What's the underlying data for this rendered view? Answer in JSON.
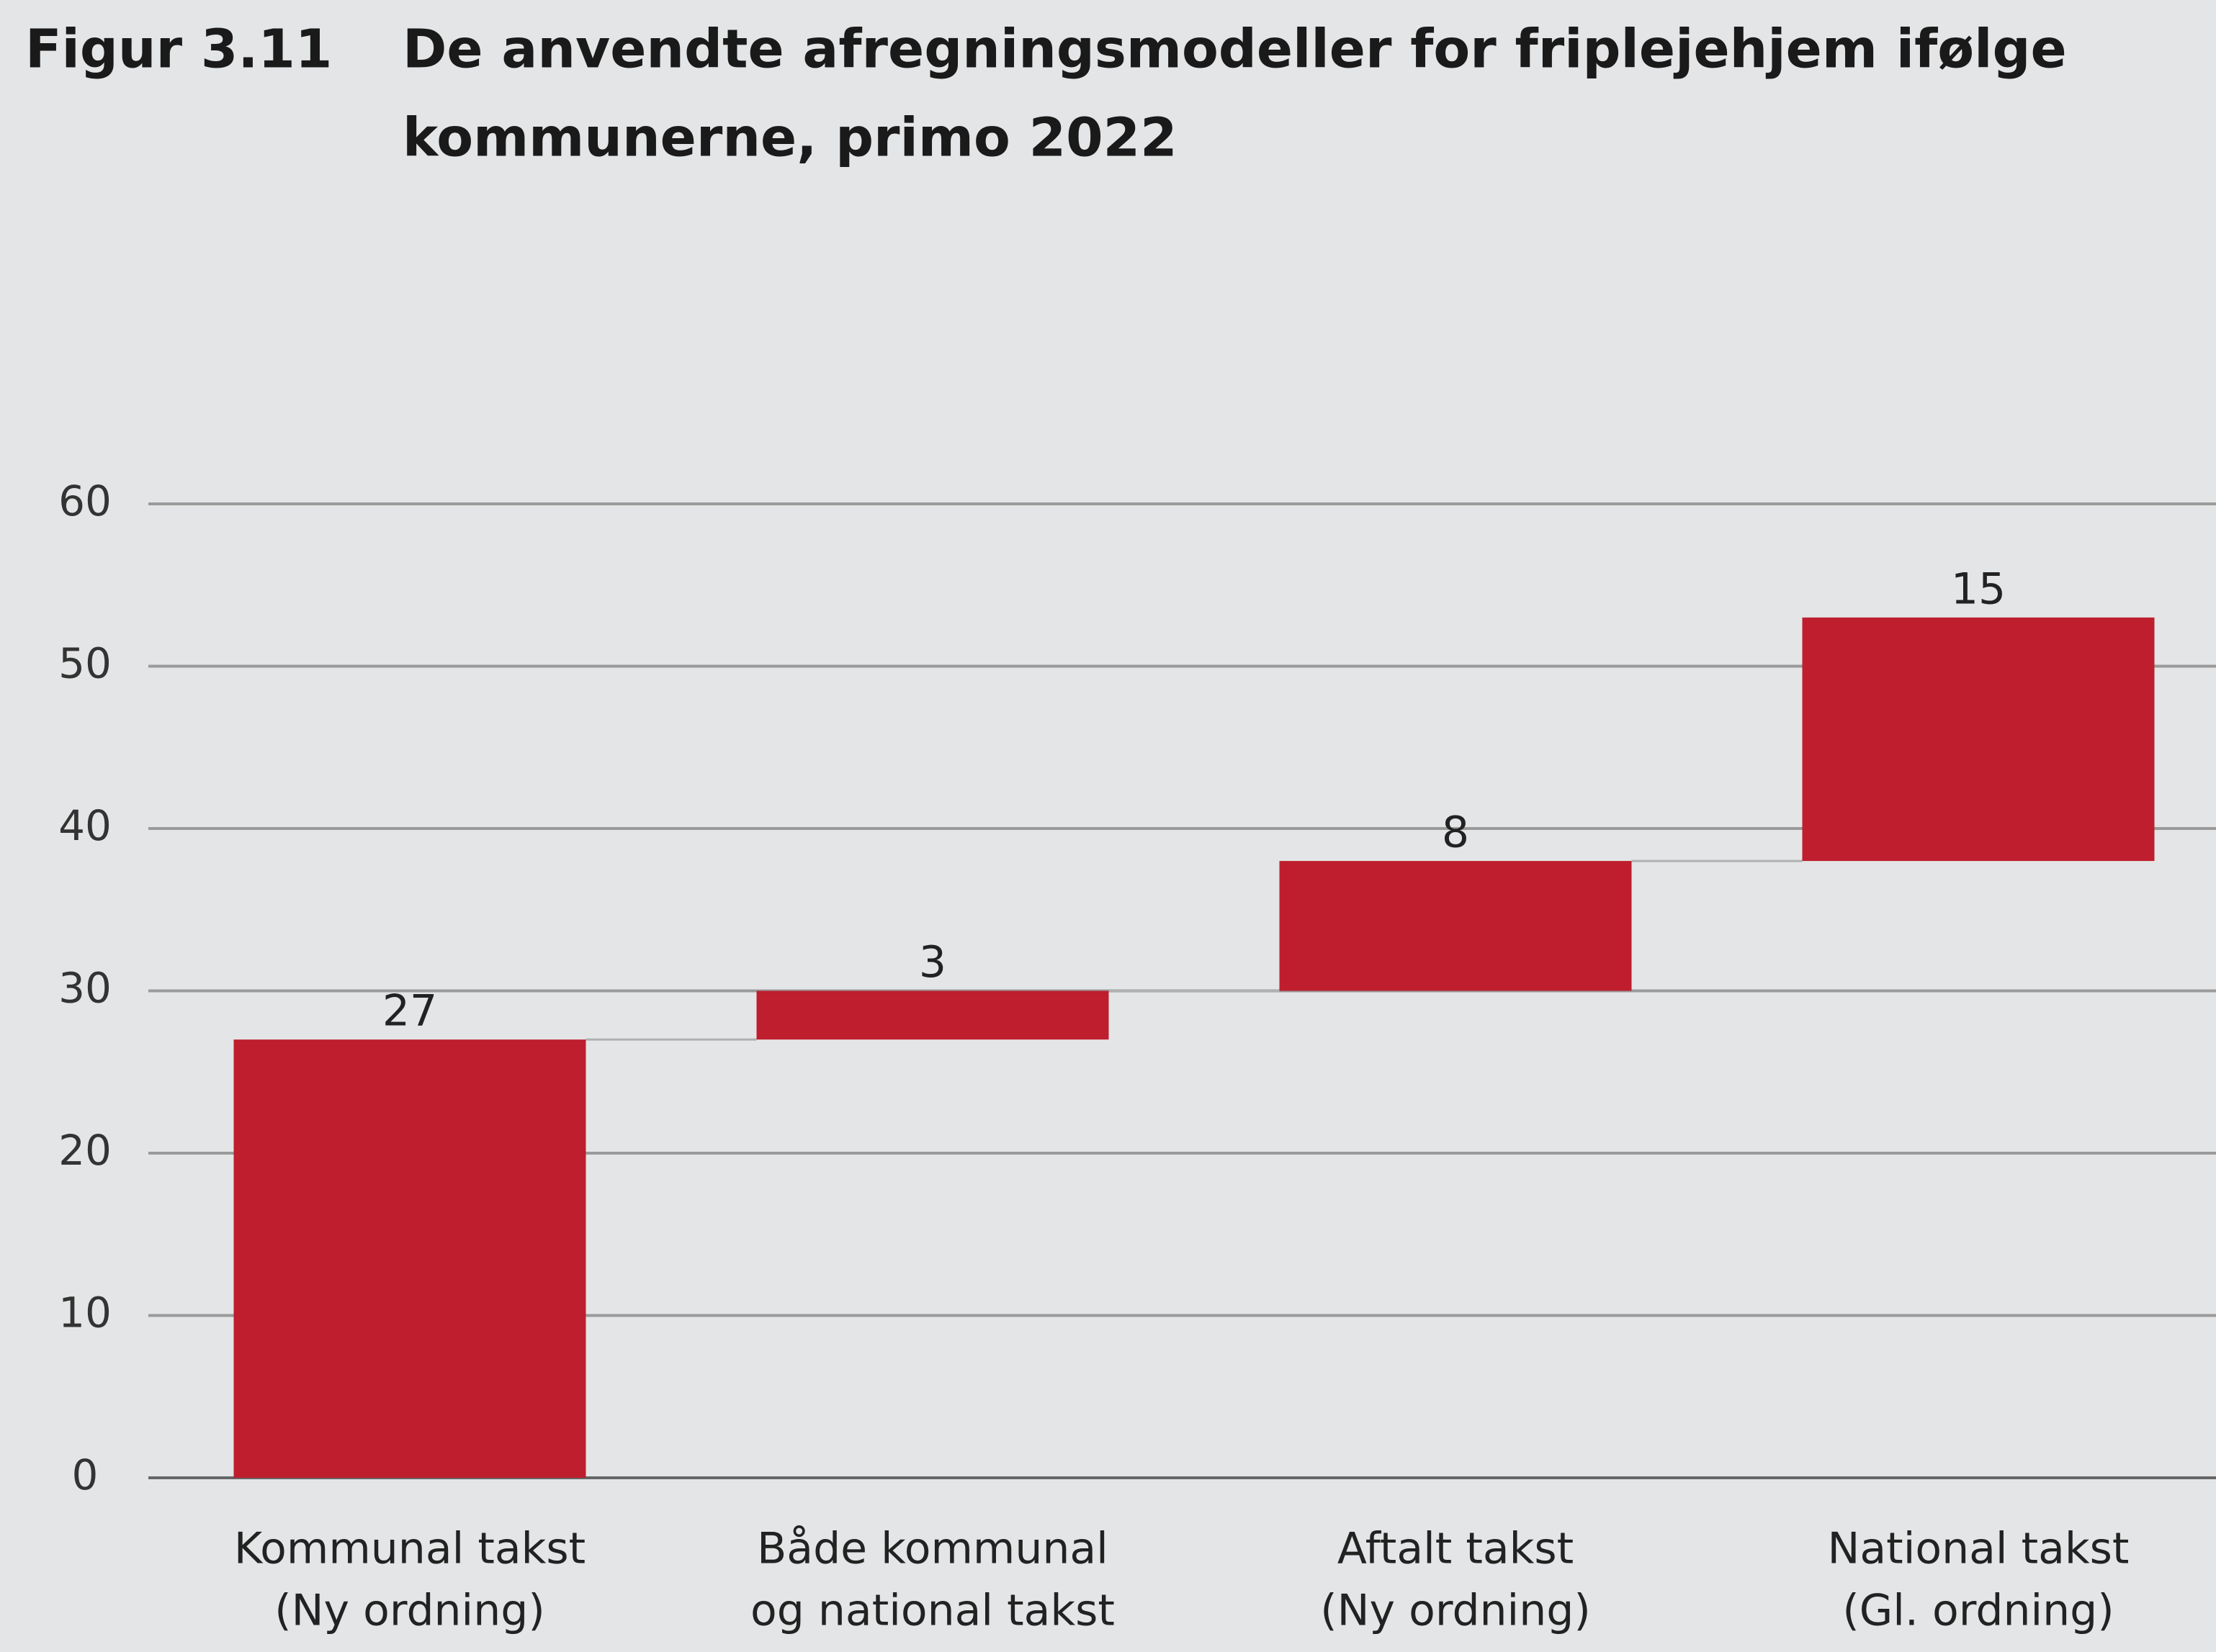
{
  "chart_data": {
    "type": "waterfall",
    "figure_label": "Figur 3.11",
    "title": [
      "De anvendte afregningsmodeller for friplejehjem ifølge",
      "kommunerne, primo 2022"
    ],
    "categories": [
      [
        "Kommunal takst",
        "(Ny ordning)"
      ],
      [
        "Både kommunal",
        "og national takst"
      ],
      [
        "Aftalt takst",
        "(Ny ordning)"
      ],
      [
        "National takst",
        "(Gl. ordning)"
      ]
    ],
    "values": [
      27,
      3,
      8,
      15
    ],
    "color": "#be1e2d",
    "ylim": [
      0,
      60
    ],
    "yticks": [
      0,
      10,
      20,
      30,
      40,
      50,
      60
    ],
    "grid": true
  }
}
